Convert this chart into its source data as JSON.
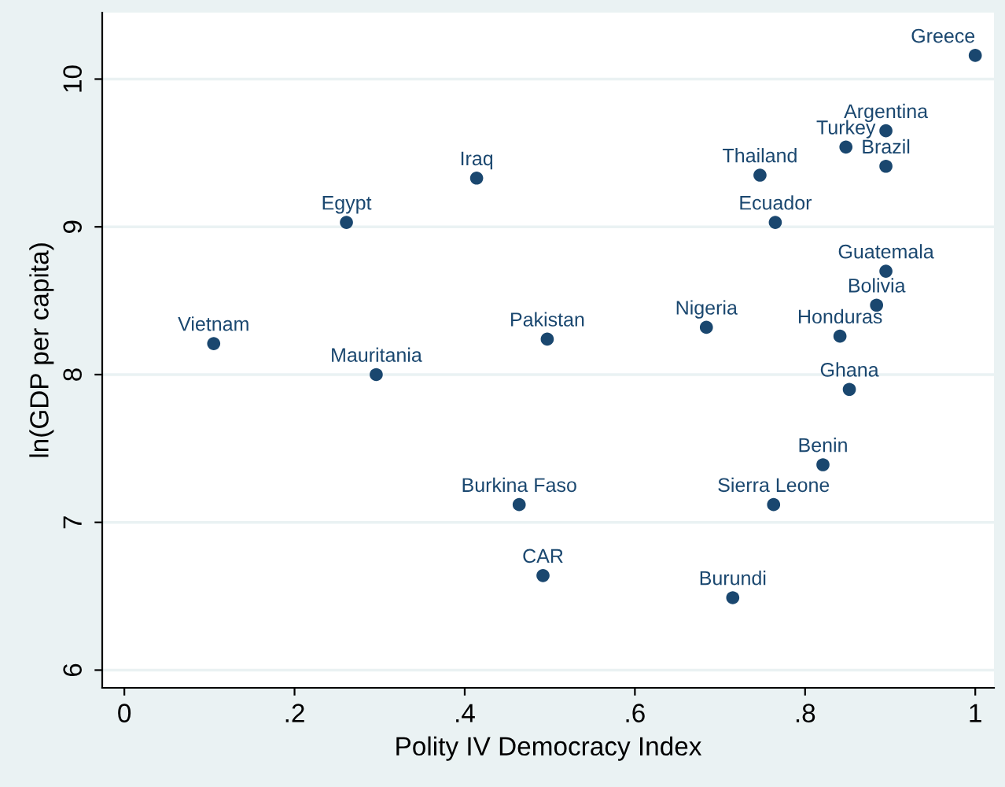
{
  "chart_data": {
    "type": "scatter",
    "xlabel": "Polity IV Democracy Index",
    "ylabel": "ln(GDP per capita)",
    "x": [
      1.0,
      0.895,
      0.848,
      0.895,
      0.414,
      0.747,
      0.261,
      0.765,
      0.895,
      0.884,
      0.105,
      0.497,
      0.684,
      0.841,
      0.296,
      0.852,
      0.821,
      0.464,
      0.763,
      0.492,
      0.715
    ],
    "series": [
      {
        "color": "#1a476f",
        "values": [
          10.16,
          9.65,
          9.54,
          9.41,
          9.33,
          9.35,
          9.03,
          9.03,
          8.7,
          8.47,
          8.21,
          8.24,
          8.32,
          8.26,
          8.0,
          7.9,
          7.39,
          7.12,
          7.12,
          6.64,
          6.49
        ]
      }
    ],
    "annotations": [
      {
        "text": "Greece",
        "x": 1.0,
        "y": 10.16
      },
      {
        "text": "Argentina",
        "x": 0.895,
        "y": 9.65
      },
      {
        "text": "Turkey",
        "x": 0.848,
        "y": 9.54
      },
      {
        "text": "Brazil",
        "x": 0.895,
        "y": 9.41
      },
      {
        "text": "Iraq",
        "x": 0.414,
        "y": 9.33
      },
      {
        "text": "Thailand",
        "x": 0.747,
        "y": 9.35
      },
      {
        "text": "Egypt",
        "x": 0.261,
        "y": 9.03
      },
      {
        "text": "Ecuador",
        "x": 0.765,
        "y": 9.03
      },
      {
        "text": "Guatemala",
        "x": 0.895,
        "y": 8.7
      },
      {
        "text": "Bolivia",
        "x": 0.884,
        "y": 8.47
      },
      {
        "text": "Vietnam",
        "x": 0.105,
        "y": 8.21
      },
      {
        "text": "Pakistan",
        "x": 0.497,
        "y": 8.24
      },
      {
        "text": "Nigeria",
        "x": 0.684,
        "y": 8.32
      },
      {
        "text": "Honduras",
        "x": 0.841,
        "y": 8.26
      },
      {
        "text": "Mauritania",
        "x": 0.296,
        "y": 8.0
      },
      {
        "text": "Ghana",
        "x": 0.852,
        "y": 7.9
      },
      {
        "text": "Benin",
        "x": 0.821,
        "y": 7.39
      },
      {
        "text": "Burkina Faso",
        "x": 0.464,
        "y": 7.12
      },
      {
        "text": "Sierra Leone",
        "x": 0.763,
        "y": 7.12
      },
      {
        "text": "CAR",
        "x": 0.492,
        "y": 6.64
      },
      {
        "text": "Burundi",
        "x": 0.715,
        "y": 6.49
      }
    ],
    "xlim": [
      -0.026,
      1.022
    ],
    "ylim": [
      5.88,
      10.45
    ],
    "xticks": [
      0,
      {
        "value": 0.2,
        "label": ".2"
      },
      {
        "value": 0.4,
        "label": ".4"
      },
      {
        "value": 0.6,
        "label": ".6"
      },
      {
        "value": 0.8,
        "label": ".8"
      },
      1
    ],
    "yticks": [
      6,
      7,
      8,
      9,
      10
    ],
    "grid": "y",
    "marker": "circle"
  }
}
